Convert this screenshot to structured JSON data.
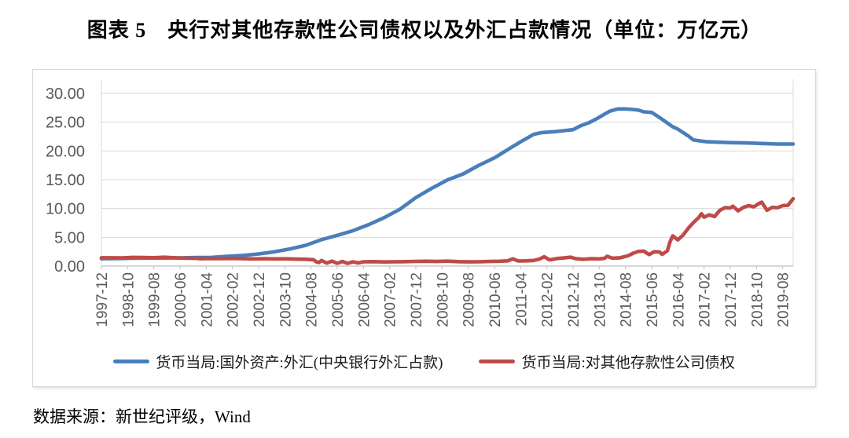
{
  "title": "图表 5　央行对其他存款性公司债权以及外汇占款情况（单位：万亿元）",
  "source_note": "数据来源：新世纪评级，Wind",
  "colors": {
    "series_fx_blue": "#4a7ebb",
    "series_claims_red": "#be4b48",
    "grid": "#d9d9d9",
    "axis": "#c0c0c0",
    "tick": "#bfbfbf",
    "axis_label": "#595959",
    "frame_border": "#d9d9d9"
  },
  "chart_data": {
    "type": "line",
    "title": "央行对其他存款性公司债权以及外汇占款情况",
    "unit_label": "万亿元",
    "grid": "horizontal",
    "legend_position": "bottom",
    "ylim": [
      0,
      30
    ],
    "y_tick_step": 5,
    "y_tick_labels": [
      "0.00",
      "5.00",
      "10.00",
      "15.00",
      "20.00",
      "25.00",
      "30.00"
    ],
    "x_start_month": "1997-12",
    "x_end_month": "2019-12",
    "x_tick_interval_months": 10,
    "x_tick_labels": [
      "1997-12",
      "1998-10",
      "1999-08",
      "2000-06",
      "2001-04",
      "2002-02",
      "2002-12",
      "2003-10",
      "2004-08",
      "2005-06",
      "2006-04",
      "2007-02",
      "2007-12",
      "2008-10",
      "2009-08",
      "2010-06",
      "2011-04",
      "2012-02",
      "2012-12",
      "2013-10",
      "2014-08",
      "2015-06",
      "2016-04",
      "2017-02",
      "2017-12",
      "2018-10",
      "2019-08"
    ],
    "series": [
      {
        "name": "货币当局:国外资产:外汇(中央银行外汇占款)",
        "color": "#4a7ebb",
        "points": [
          [
            "1997-12",
            1.28
          ],
          [
            "1998-06",
            1.32
          ],
          [
            "1998-12",
            1.37
          ],
          [
            "1999-06",
            1.39
          ],
          [
            "1999-12",
            1.41
          ],
          [
            "2000-06",
            1.43
          ],
          [
            "2000-12",
            1.48
          ],
          [
            "2001-06",
            1.52
          ],
          [
            "2001-12",
            1.69
          ],
          [
            "2002-06",
            1.85
          ],
          [
            "2002-12",
            2.11
          ],
          [
            "2003-06",
            2.48
          ],
          [
            "2003-12",
            2.98
          ],
          [
            "2004-06",
            3.62
          ],
          [
            "2004-12",
            4.59
          ],
          [
            "2005-06",
            5.35
          ],
          [
            "2005-12",
            6.15
          ],
          [
            "2006-06",
            7.2
          ],
          [
            "2006-12",
            8.44
          ],
          [
            "2007-06",
            9.9
          ],
          [
            "2007-12",
            11.9
          ],
          [
            "2008-06",
            13.5
          ],
          [
            "2008-12",
            14.96
          ],
          [
            "2009-06",
            16.0
          ],
          [
            "2009-12",
            17.5
          ],
          [
            "2010-06",
            18.8
          ],
          [
            "2010-12",
            20.5
          ],
          [
            "2011-04",
            21.6
          ],
          [
            "2011-09",
            22.9
          ],
          [
            "2011-12",
            23.2
          ],
          [
            "2012-06",
            23.4
          ],
          [
            "2012-12",
            23.7
          ],
          [
            "2013-03",
            24.4
          ],
          [
            "2013-06",
            24.9
          ],
          [
            "2013-09",
            25.6
          ],
          [
            "2013-12",
            26.4
          ],
          [
            "2014-02",
            26.9
          ],
          [
            "2014-05",
            27.3
          ],
          [
            "2014-08",
            27.3
          ],
          [
            "2014-11",
            27.2
          ],
          [
            "2015-01",
            27.1
          ],
          [
            "2015-03",
            26.8
          ],
          [
            "2015-06",
            26.7
          ],
          [
            "2015-08",
            26.1
          ],
          [
            "2015-10",
            25.5
          ],
          [
            "2015-12",
            24.85
          ],
          [
            "2016-02",
            24.2
          ],
          [
            "2016-04",
            23.8
          ],
          [
            "2016-06",
            23.2
          ],
          [
            "2016-08",
            22.6
          ],
          [
            "2016-10",
            21.9
          ],
          [
            "2017-03",
            21.6
          ],
          [
            "2017-12",
            21.45
          ],
          [
            "2018-06",
            21.4
          ],
          [
            "2018-12",
            21.3
          ],
          [
            "2019-06",
            21.2
          ],
          [
            "2019-12",
            21.2
          ]
        ]
      },
      {
        "name": "货币当局:对其他存款性公司债权",
        "color": "#be4b48",
        "points": [
          [
            "1997-12",
            1.44
          ],
          [
            "1998-04",
            1.45
          ],
          [
            "1998-08",
            1.42
          ],
          [
            "1998-12",
            1.51
          ],
          [
            "1999-04",
            1.48
          ],
          [
            "1999-08",
            1.46
          ],
          [
            "1999-12",
            1.54
          ],
          [
            "2000-04",
            1.45
          ],
          [
            "2000-08",
            1.38
          ],
          [
            "2000-12",
            1.35
          ],
          [
            "2001-02",
            1.28
          ],
          [
            "2001-06",
            1.32
          ],
          [
            "2001-10",
            1.29
          ],
          [
            "2002-02",
            1.33
          ],
          [
            "2002-06",
            1.28
          ],
          [
            "2002-10",
            1.25
          ],
          [
            "2003-02",
            1.28
          ],
          [
            "2003-06",
            1.25
          ],
          [
            "2003-10",
            1.27
          ],
          [
            "2004-02",
            1.22
          ],
          [
            "2004-06",
            1.18
          ],
          [
            "2004-09",
            1.1
          ],
          [
            "2004-10",
            0.75
          ],
          [
            "2004-11",
            0.62
          ],
          [
            "2004-12",
            0.98
          ],
          [
            "2005-02",
            0.52
          ],
          [
            "2005-04",
            0.87
          ],
          [
            "2005-06",
            0.48
          ],
          [
            "2005-08",
            0.8
          ],
          [
            "2005-10",
            0.47
          ],
          [
            "2005-12",
            0.75
          ],
          [
            "2006-02",
            0.55
          ],
          [
            "2006-04",
            0.75
          ],
          [
            "2006-08",
            0.78
          ],
          [
            "2006-12",
            0.72
          ],
          [
            "2007-04",
            0.75
          ],
          [
            "2007-08",
            0.78
          ],
          [
            "2007-12",
            0.82
          ],
          [
            "2008-04",
            0.85
          ],
          [
            "2008-08",
            0.8
          ],
          [
            "2008-12",
            0.86
          ],
          [
            "2009-04",
            0.78
          ],
          [
            "2009-08",
            0.74
          ],
          [
            "2009-12",
            0.75
          ],
          [
            "2010-04",
            0.8
          ],
          [
            "2010-08",
            0.85
          ],
          [
            "2010-11",
            0.92
          ],
          [
            "2011-01",
            1.25
          ],
          [
            "2011-03",
            0.9
          ],
          [
            "2011-06",
            0.92
          ],
          [
            "2011-09",
            0.98
          ],
          [
            "2011-11",
            1.18
          ],
          [
            "2012-01",
            1.62
          ],
          [
            "2012-03",
            1.08
          ],
          [
            "2012-06",
            1.32
          ],
          [
            "2012-09",
            1.45
          ],
          [
            "2012-11",
            1.55
          ],
          [
            "2013-01",
            1.28
          ],
          [
            "2013-04",
            1.18
          ],
          [
            "2013-07",
            1.28
          ],
          [
            "2013-10",
            1.25
          ],
          [
            "2013-12",
            1.35
          ],
          [
            "2014-01",
            1.7
          ],
          [
            "2014-03",
            1.38
          ],
          [
            "2014-06",
            1.45
          ],
          [
            "2014-09",
            1.8
          ],
          [
            "2014-11",
            2.25
          ],
          [
            "2015-01",
            2.55
          ],
          [
            "2015-03",
            2.6
          ],
          [
            "2015-05",
            2.0
          ],
          [
            "2015-07",
            2.5
          ],
          [
            "2015-09",
            2.45
          ],
          [
            "2015-10",
            2.05
          ],
          [
            "2015-12",
            2.66
          ],
          [
            "2016-01",
            4.2
          ],
          [
            "2016-02",
            5.25
          ],
          [
            "2016-04",
            4.55
          ],
          [
            "2016-06",
            5.4
          ],
          [
            "2016-08",
            6.6
          ],
          [
            "2016-10",
            7.6
          ],
          [
            "2016-12",
            8.45
          ],
          [
            "2017-01",
            9.1
          ],
          [
            "2017-02",
            8.5
          ],
          [
            "2017-04",
            8.9
          ],
          [
            "2017-06",
            8.6
          ],
          [
            "2017-08",
            9.7
          ],
          [
            "2017-10",
            10.15
          ],
          [
            "2017-12",
            10.1
          ],
          [
            "2018-01",
            10.4
          ],
          [
            "2018-03",
            9.6
          ],
          [
            "2018-05",
            10.2
          ],
          [
            "2018-07",
            10.5
          ],
          [
            "2018-09",
            10.3
          ],
          [
            "2018-11",
            10.9
          ],
          [
            "2018-12",
            11.1
          ],
          [
            "2019-02",
            9.7
          ],
          [
            "2019-04",
            10.2
          ],
          [
            "2019-06",
            10.15
          ],
          [
            "2019-08",
            10.5
          ],
          [
            "2019-10",
            10.55
          ],
          [
            "2019-12",
            11.7
          ]
        ]
      }
    ]
  }
}
